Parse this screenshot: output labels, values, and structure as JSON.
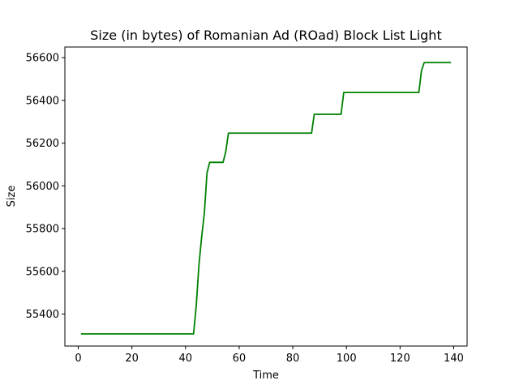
{
  "chart_data": {
    "type": "line",
    "title": "Size (in bytes) of Romanian Ad (ROad) Block List Light",
    "xlabel": "Time",
    "ylabel": "Size",
    "xlim": [
      -5,
      145
    ],
    "ylim": [
      55250,
      56650
    ],
    "xticks": [
      0,
      20,
      40,
      60,
      80,
      100,
      120,
      140
    ],
    "yticks": [
      55400,
      55600,
      55800,
      56000,
      56200,
      56400,
      56600
    ],
    "grid": false,
    "legend": "none",
    "series": [
      {
        "color": "#008000",
        "points": [
          [
            1,
            55307
          ],
          [
            43,
            55307
          ],
          [
            44,
            55440
          ],
          [
            45,
            55630
          ],
          [
            46,
            55760
          ],
          [
            47,
            55870
          ],
          [
            48,
            56060
          ],
          [
            49,
            56110
          ],
          [
            54,
            56110
          ],
          [
            55,
            56160
          ],
          [
            56,
            56247
          ],
          [
            87,
            56247
          ],
          [
            88,
            56335
          ],
          [
            98,
            56335
          ],
          [
            99,
            56437
          ],
          [
            127,
            56437
          ],
          [
            128,
            56540
          ],
          [
            129,
            56577
          ],
          [
            139,
            56577
          ]
        ]
      }
    ]
  }
}
